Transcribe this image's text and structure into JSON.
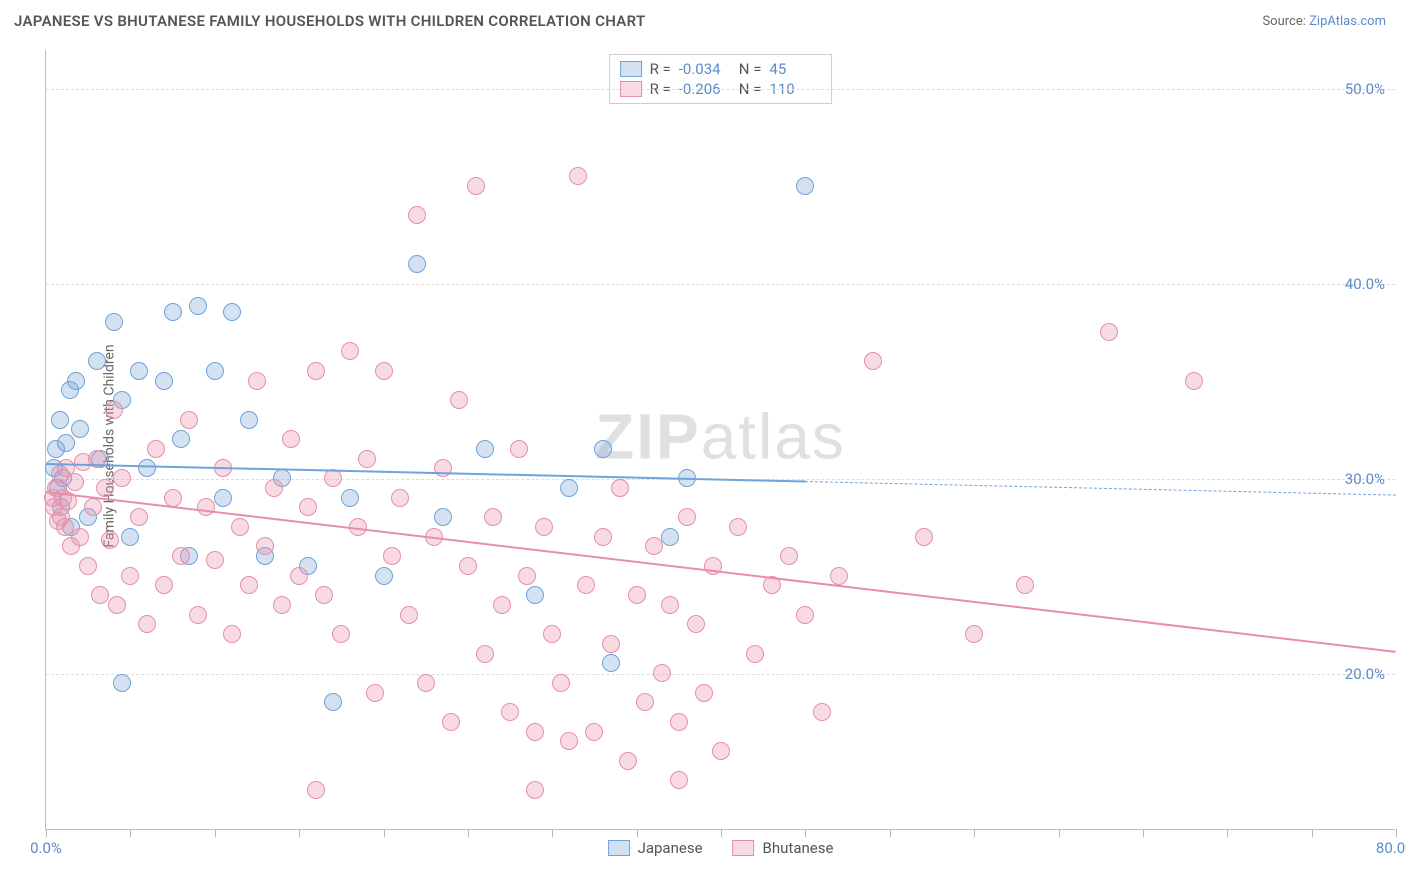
{
  "title": "JAPANESE VS BHUTANESE FAMILY HOUSEHOLDS WITH CHILDREN CORRELATION CHART",
  "source_label": "Source:",
  "source_name": "ZipAtlas.com",
  "ylabel": "Family Households with Children",
  "watermark": "ZIPatlas",
  "chart": {
    "type": "scatter",
    "background_color": "#ffffff",
    "grid_color": "#dddddd",
    "axis_color": "#bbbbbb",
    "xlim": [
      0,
      80
    ],
    "ylim": [
      12,
      52
    ],
    "xtick_positions": [
      0,
      5,
      10,
      15,
      20,
      25,
      30,
      35,
      40,
      45,
      50,
      55,
      60,
      65,
      70,
      75,
      80
    ],
    "xtick_labels": {
      "0": "0.0%",
      "80": "80.0%"
    },
    "ytick_positions": [
      20,
      30,
      40,
      50
    ],
    "ytick_labels": {
      "20": "20.0%",
      "30": "30.0%",
      "40": "40.0%",
      "50": "50.0%"
    },
    "tick_color": "#5b8bc9",
    "tick_fontsize": 15,
    "marker_radius": 9,
    "series": [
      {
        "name": "Japanese",
        "color": "#6fa3d9",
        "fill": "rgba(130,170,215,0.35)",
        "border": "#6fa3d9",
        "R": "-0.034",
        "N": "45",
        "trend": {
          "x0": 0,
          "y0": 30.8,
          "x1": 80,
          "y1": 29.2,
          "solid_until": 45
        },
        "points": [
          [
            0.5,
            30.5
          ],
          [
            0.6,
            31.5
          ],
          [
            0.7,
            29.5
          ],
          [
            0.8,
            33.0
          ],
          [
            0.9,
            28.5
          ],
          [
            1.0,
            30.0
          ],
          [
            1.2,
            31.8
          ],
          [
            1.4,
            34.5
          ],
          [
            1.5,
            27.5
          ],
          [
            1.8,
            35.0
          ],
          [
            2.0,
            32.5
          ],
          [
            2.5,
            28.0
          ],
          [
            3.0,
            36.0
          ],
          [
            3.2,
            31.0
          ],
          [
            4.0,
            38.0
          ],
          [
            4.5,
            34.0
          ],
          [
            5.0,
            27.0
          ],
          [
            5.5,
            35.5
          ],
          [
            6.0,
            30.5
          ],
          [
            7.0,
            35.0
          ],
          [
            7.5,
            38.5
          ],
          [
            8.0,
            32.0
          ],
          [
            8.5,
            26.0
          ],
          [
            9.0,
            38.8
          ],
          [
            10.0,
            35.5
          ],
          [
            10.5,
            29.0
          ],
          [
            11.0,
            38.5
          ],
          [
            12.0,
            33.0
          ],
          [
            13.0,
            26.0
          ],
          [
            14.0,
            30.0
          ],
          [
            15.5,
            25.5
          ],
          [
            17.0,
            18.5
          ],
          [
            18.0,
            29.0
          ],
          [
            20.0,
            25.0
          ],
          [
            22.0,
            41.0
          ],
          [
            23.5,
            28.0
          ],
          [
            26.0,
            31.5
          ],
          [
            29.0,
            24.0
          ],
          [
            31.0,
            29.5
          ],
          [
            33.0,
            31.5
          ],
          [
            33.5,
            20.5
          ],
          [
            37.0,
            27.0
          ],
          [
            38.0,
            30.0
          ],
          [
            45.0,
            45.0
          ],
          [
            4.5,
            19.5
          ]
        ]
      },
      {
        "name": "Bhutanese",
        "color": "#e68fa8",
        "fill": "rgba(235,150,175,0.35)",
        "border": "#e68fa8",
        "R": "-0.206",
        "N": "110",
        "trend": {
          "x0": 0,
          "y0": 29.4,
          "x1": 80,
          "y1": 21.2,
          "solid_until": 80
        },
        "points": [
          [
            0.4,
            29.0
          ],
          [
            0.5,
            28.5
          ],
          [
            0.6,
            29.5
          ],
          [
            0.7,
            27.8
          ],
          [
            0.8,
            30.2
          ],
          [
            0.9,
            28.0
          ],
          [
            1.0,
            29.0
          ],
          [
            1.1,
            27.5
          ],
          [
            1.2,
            30.5
          ],
          [
            1.3,
            28.8
          ],
          [
            1.5,
            26.5
          ],
          [
            1.7,
            29.8
          ],
          [
            2.0,
            27.0
          ],
          [
            2.2,
            30.8
          ],
          [
            2.5,
            25.5
          ],
          [
            2.8,
            28.5
          ],
          [
            3.0,
            31.0
          ],
          [
            3.2,
            24.0
          ],
          [
            3.5,
            29.5
          ],
          [
            3.8,
            26.8
          ],
          [
            4.0,
            33.5
          ],
          [
            4.2,
            23.5
          ],
          [
            4.5,
            30.0
          ],
          [
            5.0,
            25.0
          ],
          [
            5.5,
            28.0
          ],
          [
            6.0,
            22.5
          ],
          [
            6.5,
            31.5
          ],
          [
            7.0,
            24.5
          ],
          [
            7.5,
            29.0
          ],
          [
            8.0,
            26.0
          ],
          [
            8.5,
            33.0
          ],
          [
            9.0,
            23.0
          ],
          [
            9.5,
            28.5
          ],
          [
            10.0,
            25.8
          ],
          [
            10.5,
            30.5
          ],
          [
            11.0,
            22.0
          ],
          [
            11.5,
            27.5
          ],
          [
            12.0,
            24.5
          ],
          [
            12.5,
            35.0
          ],
          [
            13.0,
            26.5
          ],
          [
            13.5,
            29.5
          ],
          [
            14.0,
            23.5
          ],
          [
            14.5,
            32.0
          ],
          [
            15.0,
            25.0
          ],
          [
            15.5,
            28.5
          ],
          [
            16.0,
            35.5
          ],
          [
            16.5,
            24.0
          ],
          [
            17.0,
            30.0
          ],
          [
            17.5,
            22.0
          ],
          [
            18.0,
            36.5
          ],
          [
            18.5,
            27.5
          ],
          [
            19.0,
            31.0
          ],
          [
            19.5,
            19.0
          ],
          [
            20.0,
            35.5
          ],
          [
            20.5,
            26.0
          ],
          [
            21.0,
            29.0
          ],
          [
            21.5,
            23.0
          ],
          [
            22.0,
            43.5
          ],
          [
            22.5,
            19.5
          ],
          [
            23.0,
            27.0
          ],
          [
            23.5,
            30.5
          ],
          [
            24.0,
            17.5
          ],
          [
            24.5,
            34.0
          ],
          [
            25.0,
            25.5
          ],
          [
            25.5,
            45.0
          ],
          [
            26.0,
            21.0
          ],
          [
            26.5,
            28.0
          ],
          [
            27.0,
            23.5
          ],
          [
            27.5,
            18.0
          ],
          [
            28.0,
            31.5
          ],
          [
            28.5,
            25.0
          ],
          [
            29.0,
            14.0
          ],
          [
            29.5,
            27.5
          ],
          [
            30.0,
            22.0
          ],
          [
            30.5,
            19.5
          ],
          [
            31.0,
            16.5
          ],
          [
            31.5,
            45.5
          ],
          [
            32.0,
            24.5
          ],
          [
            32.5,
            17.0
          ],
          [
            33.0,
            27.0
          ],
          [
            33.5,
            21.5
          ],
          [
            34.0,
            29.5
          ],
          [
            34.5,
            15.5
          ],
          [
            35.0,
            24.0
          ],
          [
            35.5,
            18.5
          ],
          [
            36.0,
            26.5
          ],
          [
            36.5,
            20.0
          ],
          [
            37.0,
            23.5
          ],
          [
            37.5,
            17.5
          ],
          [
            38.0,
            28.0
          ],
          [
            38.5,
            22.5
          ],
          [
            39.0,
            19.0
          ],
          [
            39.5,
            25.5
          ],
          [
            40.0,
            16.0
          ],
          [
            41.0,
            27.5
          ],
          [
            42.0,
            21.0
          ],
          [
            43.0,
            24.5
          ],
          [
            44.0,
            26.0
          ],
          [
            45.0,
            23.0
          ],
          [
            46.0,
            18.0
          ],
          [
            47.0,
            25.0
          ],
          [
            49.0,
            36.0
          ],
          [
            52.0,
            27.0
          ],
          [
            55.0,
            22.0
          ],
          [
            58.0,
            24.5
          ],
          [
            63.0,
            37.5
          ],
          [
            68.0,
            35.0
          ],
          [
            16.0,
            14.0
          ],
          [
            37.5,
            14.5
          ],
          [
            29.0,
            17.0
          ]
        ]
      }
    ]
  },
  "legend_bottom": [
    "Japanese",
    "Bhutanese"
  ]
}
